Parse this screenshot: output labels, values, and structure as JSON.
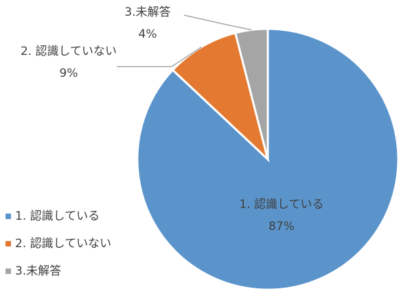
{
  "chart_data": {
    "type": "pie",
    "categories": [
      "1. 認識している",
      "2. 認識していない",
      "3.未解答"
    ],
    "values": [
      87,
      9,
      4
    ],
    "value_labels": [
      "87%",
      "9%",
      "4%"
    ],
    "colors": [
      "#5b94cb",
      "#e47a31",
      "#a5a5a5"
    ],
    "legend": "left"
  }
}
